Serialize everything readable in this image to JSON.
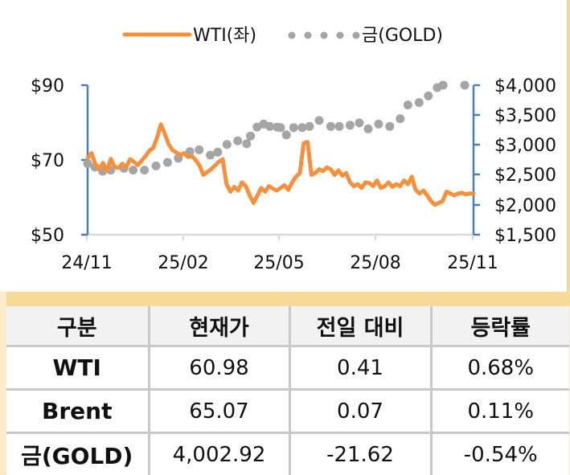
{
  "legend": {
    "wti_label": "WTI(좌)",
    "gold_label": "금(GOLD)"
  },
  "axes": {
    "left_ticks": [
      "$90",
      "$70",
      "$50"
    ],
    "right_ticks": [
      "$4,000",
      "$3,500",
      "$3,000",
      "$2,500",
      "$2,000",
      "$1,500"
    ],
    "x_ticks": [
      "24/11",
      "25/02",
      "25/05",
      "25/08",
      "25/11"
    ]
  },
  "colors": {
    "wti": "#f5913e",
    "gold": "#a5a5a5",
    "axis": "#4a7ebb",
    "gridline": "#d9d9d9",
    "band": "#f7d998"
  },
  "chart_data": {
    "type": "line",
    "title": "",
    "legend_position": "top",
    "x_range": [
      "24/11",
      "25/11"
    ],
    "x_ticks": [
      "24/11",
      "25/02",
      "25/05",
      "25/08",
      "25/11"
    ],
    "series": [
      {
        "name": "WTI(좌)",
        "axis": "left",
        "style": "solid-line",
        "ylim": [
          50,
          90
        ],
        "x": [
          0,
          0.01,
          0.02,
          0.03,
          0.04,
          0.05,
          0.06,
          0.07,
          0.08,
          0.09,
          0.1,
          0.11,
          0.12,
          0.13,
          0.14,
          0.15,
          0.16,
          0.17,
          0.18,
          0.19,
          0.2,
          0.21,
          0.22,
          0.23,
          0.24,
          0.25,
          0.26,
          0.27,
          0.28,
          0.29,
          0.3,
          0.31,
          0.32,
          0.33,
          0.34,
          0.35,
          0.36,
          0.37,
          0.38,
          0.39,
          0.4,
          0.41,
          0.42,
          0.43,
          0.44,
          0.45,
          0.46,
          0.47,
          0.48,
          0.49,
          0.5,
          0.51,
          0.52,
          0.53,
          0.54,
          0.55,
          0.56,
          0.57,
          0.58,
          0.59,
          0.6,
          0.61,
          0.62,
          0.63,
          0.64,
          0.65,
          0.66,
          0.67,
          0.68,
          0.69,
          0.7,
          0.71,
          0.72,
          0.73,
          0.74,
          0.75,
          0.76,
          0.77,
          0.78,
          0.79,
          0.8,
          0.81,
          0.82,
          0.83,
          0.84,
          0.85,
          0.86,
          0.87,
          0.88,
          0.89,
          0.9,
          0.91,
          0.92,
          0.93,
          0.94,
          0.95,
          0.96,
          0.97,
          0.98,
          0.99,
          1.0
        ],
        "values": [
          70.5,
          71.8,
          68.9,
          67.5,
          69.2,
          67.0,
          70.3,
          68.1,
          67.9,
          69.0,
          68.0,
          70.2,
          69.5,
          68.6,
          69.8,
          71.0,
          72.5,
          73.2,
          76.0,
          79.5,
          77.0,
          74.2,
          72.6,
          72.0,
          71.3,
          71.8,
          70.8,
          71.0,
          70.0,
          68.5,
          66.0,
          66.8,
          67.5,
          68.5,
          69.5,
          70.2,
          63.5,
          61.5,
          62.8,
          61.8,
          64.0,
          63.0,
          60.5,
          58.5,
          60.5,
          62.5,
          61.5,
          63.0,
          62.3,
          61.8,
          62.5,
          63.2,
          62.0,
          64.0,
          65.5,
          66.5,
          74.5,
          74.8,
          66.0,
          66.5,
          67.5,
          67.0,
          68.0,
          67.5,
          66.0,
          67.2,
          65.8,
          66.5,
          64.0,
          63.0,
          63.5,
          62.5,
          64.0,
          63.8,
          63.0,
          64.5,
          62.5,
          63.0,
          64.0,
          62.8,
          63.5,
          63.0,
          64.5,
          63.5,
          65.5,
          62.0,
          61.0,
          61.8,
          60.5,
          59.0,
          58.0,
          58.5,
          59.0,
          61.5,
          61.0,
          60.5,
          61.0,
          61.2,
          60.8,
          61.0,
          61.0
        ]
      },
      {
        "name": "금(GOLD)",
        "axis": "right",
        "style": "dotted",
        "ylim": [
          1500,
          4000
        ],
        "x": [
          0.0,
          0.019,
          0.039,
          0.06,
          0.094,
          0.118,
          0.147,
          0.177,
          0.207,
          0.235,
          0.265,
          0.289,
          0.318,
          0.337,
          0.361,
          0.389,
          0.412,
          0.422,
          0.439,
          0.456,
          0.472,
          0.491,
          0.5,
          0.515,
          0.534,
          0.556,
          0.575,
          0.6,
          0.63,
          0.652,
          0.68,
          0.704,
          0.727,
          0.754,
          0.783,
          0.81,
          0.83,
          0.859,
          0.883,
          0.906,
          0.921,
          0.977
        ],
        "values": [
          2690,
          2630,
          2560,
          2580,
          2610,
          2580,
          2580,
          2650,
          2710,
          2780,
          2890,
          2920,
          2830,
          2880,
          3010,
          3070,
          3020,
          3150,
          3300,
          3350,
          3310,
          3300,
          3290,
          3170,
          3290,
          3290,
          3310,
          3410,
          3310,
          3310,
          3330,
          3370,
          3270,
          3350,
          3310,
          3440,
          3670,
          3710,
          3820,
          3960,
          4020,
          4030
        ]
      }
    ],
    "table": {
      "headers": [
        "구분",
        "현재가",
        "전일 대비",
        "등락률"
      ],
      "rows": [
        [
          "WTI",
          "60.98",
          "0.41",
          "0.68%"
        ],
        [
          "Brent",
          "65.07",
          "0.07",
          "0.11%"
        ],
        [
          "금(GOLD)",
          "4,002.92",
          "-21.62",
          "-0.54%"
        ]
      ]
    }
  },
  "table": {
    "headers": [
      "구분",
      "현재가",
      "전일 대비",
      "등락률"
    ],
    "rows": [
      {
        "label": "WTI",
        "price": "60.98",
        "change": "0.41",
        "pct": "0.68%"
      },
      {
        "label": "Brent",
        "price": "65.07",
        "change": "0.07",
        "pct": "0.11%"
      },
      {
        "label": "금(GOLD)",
        "price": "4,002.92",
        "change": "-21.62",
        "pct": "-0.54%"
      }
    ]
  }
}
